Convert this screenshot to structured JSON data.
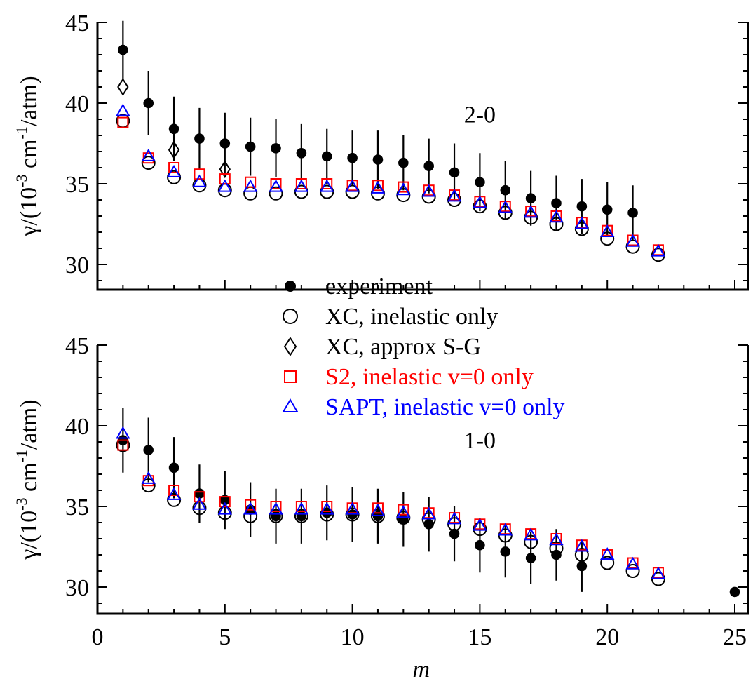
{
  "chart_data": [
    {
      "type": "scatter",
      "panel": "upper",
      "title": "",
      "panel_label": "2-0",
      "xlabel": "",
      "ylabel": "γ/(10⁻³ cm⁻¹/atm)",
      "xlim": [
        0,
        25.5
      ],
      "ylim": [
        29.0,
        45.0
      ],
      "yticks": [
        "45",
        "40",
        "35",
        "30"
      ],
      "grid": false,
      "series": [
        {
          "name": "experiment",
          "marker": "filled-circle",
          "color": "#000000",
          "x": [
            1,
            2,
            3,
            4,
            5,
            6,
            7,
            8,
            9,
            10,
            11,
            12,
            13,
            14,
            15,
            16,
            17,
            18,
            19,
            20,
            21
          ],
          "y": [
            43.3,
            40.0,
            38.4,
            37.8,
            37.5,
            37.3,
            37.2,
            36.9,
            36.7,
            36.6,
            36.5,
            36.3,
            36.1,
            35.7,
            35.1,
            34.6,
            34.1,
            33.8,
            33.6,
            33.4,
            33.2
          ],
          "err": [
            1.8,
            2.0,
            2.0,
            1.9,
            1.9,
            1.8,
            1.8,
            1.8,
            1.7,
            1.7,
            1.8,
            1.7,
            1.7,
            1.8,
            1.8,
            1.8,
            1.7,
            1.7,
            1.7,
            1.7,
            1.7
          ]
        },
        {
          "name": "XC, inelastic only",
          "marker": "open-circle",
          "color": "#000000",
          "x": [
            1,
            2,
            3,
            4,
            5,
            6,
            7,
            8,
            9,
            10,
            11,
            12,
            13,
            14,
            15,
            16,
            17,
            18,
            19,
            20,
            21,
            22
          ],
          "y": [
            38.9,
            36.3,
            35.4,
            34.9,
            34.6,
            34.4,
            34.4,
            34.5,
            34.5,
            34.5,
            34.4,
            34.3,
            34.2,
            34.0,
            33.6,
            33.2,
            32.9,
            32.5,
            32.2,
            31.6,
            31.1,
            30.6
          ]
        },
        {
          "name": "XC, approx S-G",
          "marker": "open-diamond",
          "color": "#000000",
          "x": [
            1,
            3,
            5
          ],
          "y": [
            41.0,
            37.1,
            35.9
          ]
        },
        {
          "name": "S2, inelastic v=0 only",
          "marker": "open-square",
          "color": "#ff0000",
          "x": [
            1,
            2,
            3,
            4,
            5,
            6,
            7,
            8,
            9,
            10,
            11,
            12,
            13,
            14,
            15,
            16,
            17,
            18,
            19,
            20,
            21,
            22
          ],
          "y": [
            38.8,
            36.6,
            36.0,
            35.6,
            35.3,
            35.1,
            35.0,
            35.0,
            35.0,
            34.9,
            34.9,
            34.8,
            34.6,
            34.3,
            33.9,
            33.6,
            33.3,
            33.0,
            32.6,
            32.1,
            31.5,
            30.9
          ]
        },
        {
          "name": "SAPT, inelastic v=0 only",
          "marker": "open-triangle",
          "color": "#0000ff",
          "x": [
            1,
            2,
            3,
            4,
            5,
            6,
            7,
            8,
            9,
            10,
            11,
            12,
            13,
            14,
            15,
            16,
            17,
            18,
            19,
            20,
            21,
            22
          ],
          "y": [
            39.5,
            36.7,
            35.7,
            35.1,
            34.8,
            34.8,
            34.8,
            34.8,
            34.8,
            34.8,
            34.7,
            34.6,
            34.5,
            34.2,
            33.8,
            33.5,
            33.2,
            32.9,
            32.5,
            32.0,
            31.4,
            30.8
          ]
        }
      ]
    },
    {
      "type": "scatter",
      "panel": "lower",
      "title": "",
      "panel_label": "1-0",
      "xlabel": "m",
      "ylabel": "γ/(10⁻³ cm⁻¹/atm)",
      "xlim": [
        0,
        25.5
      ],
      "ylim": [
        29.0,
        45.0
      ],
      "xticks": [
        "0",
        "5",
        "10",
        "15",
        "20",
        "25"
      ],
      "yticks": [
        "45",
        "40",
        "35",
        "30"
      ],
      "grid": false,
      "series": [
        {
          "name": "experiment",
          "marker": "filled-circle",
          "color": "#000000",
          "x": [
            1,
            2,
            3,
            4,
            5,
            6,
            7,
            8,
            9,
            10,
            11,
            12,
            13,
            14,
            15,
            16,
            17,
            18,
            19,
            25
          ],
          "y": [
            39.1,
            38.5,
            37.4,
            35.8,
            35.4,
            34.8,
            34.4,
            34.4,
            34.6,
            34.5,
            34.4,
            34.2,
            33.9,
            33.3,
            32.6,
            32.2,
            31.8,
            32.0,
            31.3,
            29.7
          ],
          "err": [
            2.0,
            2.0,
            1.9,
            1.8,
            1.8,
            1.7,
            1.7,
            1.7,
            1.7,
            1.7,
            1.7,
            1.7,
            1.7,
            1.7,
            1.7,
            1.6,
            1.6,
            1.6,
            1.6,
            0.0
          ]
        },
        {
          "name": "XC, inelastic only",
          "marker": "open-circle",
          "color": "#000000",
          "x": [
            1,
            2,
            3,
            4,
            5,
            6,
            7,
            8,
            9,
            10,
            11,
            12,
            13,
            14,
            15,
            16,
            17,
            18,
            19,
            20,
            21,
            22
          ],
          "y": [
            38.8,
            36.3,
            35.4,
            34.9,
            34.6,
            34.4,
            34.4,
            34.4,
            34.5,
            34.5,
            34.4,
            34.3,
            34.2,
            33.9,
            33.6,
            33.2,
            32.8,
            32.4,
            32.0,
            31.5,
            31.0,
            30.5
          ]
        },
        {
          "name": "S2, inelastic v=0 only",
          "marker": "open-square",
          "color": "#ff0000",
          "x": [
            1,
            2,
            3,
            4,
            5,
            6,
            7,
            8,
            9,
            10,
            11,
            12,
            13,
            14,
            15,
            16,
            17,
            18,
            19,
            20,
            21,
            22
          ],
          "y": [
            38.8,
            36.6,
            36.0,
            35.6,
            35.3,
            35.1,
            35.0,
            35.0,
            35.0,
            34.9,
            34.9,
            34.8,
            34.6,
            34.3,
            33.9,
            33.6,
            33.3,
            33.0,
            32.6,
            32.0,
            31.5,
            30.9
          ]
        },
        {
          "name": "SAPT, inelastic v=0 only",
          "marker": "open-triangle",
          "color": "#0000ff",
          "x": [
            1,
            2,
            3,
            4,
            5,
            6,
            7,
            8,
            9,
            10,
            11,
            12,
            13,
            14,
            15,
            16,
            17,
            18,
            19,
            20,
            21,
            22
          ],
          "y": [
            39.5,
            36.7,
            35.7,
            35.1,
            34.8,
            34.8,
            34.8,
            34.8,
            34.8,
            34.8,
            34.7,
            34.6,
            34.5,
            34.2,
            33.8,
            33.5,
            33.2,
            32.9,
            32.5,
            32.0,
            31.4,
            30.8
          ]
        }
      ]
    }
  ],
  "legend": {
    "placement": "center",
    "entries": [
      {
        "label": "experiment",
        "marker": "filled-circle",
        "color": "#000000"
      },
      {
        "label": "XC, inelastic only",
        "marker": "open-circle",
        "color": "#000000"
      },
      {
        "label": "XC, approx S-G",
        "marker": "open-diamond",
        "color": "#000000"
      },
      {
        "label": "S2, inelastic v=0 only",
        "marker": "open-square",
        "color": "#ff0000"
      },
      {
        "label": "SAPT, inelastic v=0 only",
        "marker": "open-triangle",
        "color": "#0000ff"
      }
    ]
  },
  "colors": {
    "experiment": "#000000",
    "xc": "#000000",
    "s2": "#ff0000",
    "sapt": "#0000ff",
    "axis": "#000000"
  }
}
